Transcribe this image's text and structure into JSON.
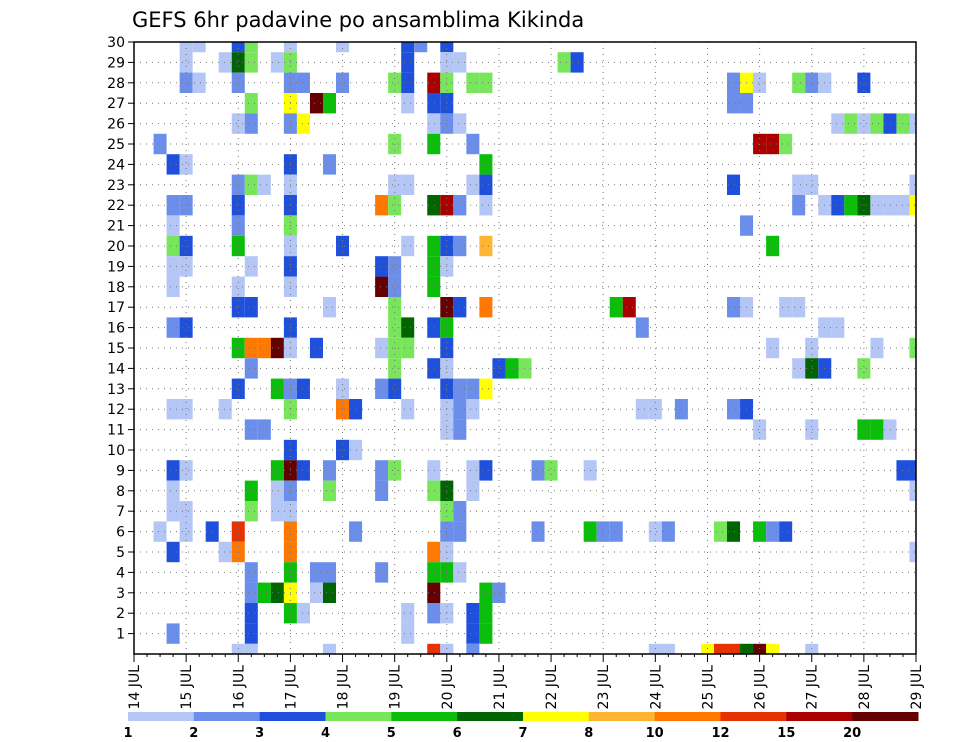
{
  "chart_data": {
    "type": "heatmap",
    "title": "GEFS 6hr padavine po ansamblima Kikinda",
    "xlabel": "",
    "ylabel": "",
    "x_ticks": [
      "14 JUL",
      "15 JUL",
      "16 JUL",
      "17 JUL",
      "18 JUL",
      "19 JUL",
      "20 JUL",
      "21 JUL",
      "22 JUL",
      "23 JUL",
      "24 JUL",
      "25 JUL",
      "26 JUL",
      "27 JUL",
      "28 JUL",
      "29 JUL"
    ],
    "x_unit": "6-hour step from 14 JUL 00",
    "x_range": [
      0,
      60
    ],
    "y_ticks": [
      1,
      2,
      3,
      4,
      5,
      6,
      7,
      8,
      9,
      10,
      11,
      12,
      13,
      14,
      15,
      16,
      17,
      18,
      19,
      20,
      21,
      22,
      23,
      24,
      25,
      26,
      27,
      28,
      29,
      30
    ],
    "y_range": [
      0,
      30
    ],
    "grid": true,
    "color_scale": {
      "boundaries": [
        1,
        2,
        3,
        4,
        5,
        6,
        7,
        8,
        10,
        12,
        15,
        20
      ],
      "labels": [
        "1",
        "2",
        "3",
        "4",
        "5",
        "6",
        "7",
        "8",
        "10",
        "12",
        "15",
        "20"
      ],
      "colors": [
        "#b4c6f5",
        "#6b8eea",
        "#1e50dc",
        "#78e65a",
        "#0abe0a",
        "#006400",
        "#ffff00",
        "#ffb432",
        "#ff7800",
        "#e63200",
        "#aa0000",
        "#640000"
      ]
    },
    "cells": [
      [
        4,
        30,
        1
      ],
      [
        5,
        30,
        1
      ],
      [
        8,
        30,
        3
      ],
      [
        9,
        30,
        4
      ],
      [
        12,
        30,
        1
      ],
      [
        16,
        30,
        1
      ],
      [
        21,
        30,
        3
      ],
      [
        22,
        30,
        2
      ],
      [
        24,
        30,
        3
      ],
      [
        4,
        29,
        1
      ],
      [
        7,
        29,
        1
      ],
      [
        8,
        29,
        6
      ],
      [
        9,
        29,
        4
      ],
      [
        11,
        29,
        1
      ],
      [
        12,
        29,
        4
      ],
      [
        21,
        29,
        3
      ],
      [
        24,
        29,
        1
      ],
      [
        25,
        29,
        1
      ],
      [
        33,
        29,
        4
      ],
      [
        34,
        29,
        3
      ],
      [
        4,
        28,
        2
      ],
      [
        5,
        28,
        1
      ],
      [
        8,
        28,
        2
      ],
      [
        12,
        28,
        2
      ],
      [
        13,
        28,
        2
      ],
      [
        16,
        28,
        2
      ],
      [
        20,
        28,
        4
      ],
      [
        21,
        28,
        3
      ],
      [
        23,
        28,
        11
      ],
      [
        24,
        28,
        4
      ],
      [
        26,
        28,
        4
      ],
      [
        27,
        28,
        4
      ],
      [
        46,
        28,
        2
      ],
      [
        47,
        28,
        7
      ],
      [
        48,
        28,
        1
      ],
      [
        51,
        28,
        4
      ],
      [
        52,
        28,
        2
      ],
      [
        53,
        28,
        1
      ],
      [
        56,
        28,
        3
      ],
      [
        9,
        27,
        4
      ],
      [
        12,
        27,
        7
      ],
      [
        14,
        27,
        12
      ],
      [
        15,
        27,
        5
      ],
      [
        21,
        27,
        1
      ],
      [
        23,
        27,
        3
      ],
      [
        24,
        27,
        3
      ],
      [
        46,
        27,
        2
      ],
      [
        47,
        27,
        2
      ],
      [
        8,
        26,
        1
      ],
      [
        9,
        26,
        2
      ],
      [
        12,
        26,
        2
      ],
      [
        13,
        26,
        7
      ],
      [
        23,
        26,
        1
      ],
      [
        24,
        26,
        2
      ],
      [
        25,
        26,
        1
      ],
      [
        54,
        26,
        1
      ],
      [
        55,
        26,
        4
      ],
      [
        56,
        26,
        1
      ],
      [
        57,
        26,
        4
      ],
      [
        58,
        26,
        3
      ],
      [
        59,
        26,
        4
      ],
      [
        60,
        26,
        1
      ],
      [
        2,
        25,
        2
      ],
      [
        20,
        25,
        4
      ],
      [
        23,
        25,
        5
      ],
      [
        26,
        25,
        2
      ],
      [
        48,
        25,
        11
      ],
      [
        49,
        25,
        11
      ],
      [
        50,
        25,
        4
      ],
      [
        3,
        24,
        3
      ],
      [
        4,
        24,
        1
      ],
      [
        12,
        24,
        3
      ],
      [
        15,
        24,
        2
      ],
      [
        27,
        24,
        5
      ],
      [
        8,
        23,
        2
      ],
      [
        9,
        23,
        4
      ],
      [
        10,
        23,
        1
      ],
      [
        12,
        23,
        1
      ],
      [
        20,
        23,
        1
      ],
      [
        21,
        23,
        1
      ],
      [
        26,
        23,
        1
      ],
      [
        27,
        23,
        3
      ],
      [
        46,
        23,
        3
      ],
      [
        51,
        23,
        1
      ],
      [
        52,
        23,
        1
      ],
      [
        60,
        23,
        1
      ],
      [
        3,
        22,
        2
      ],
      [
        4,
        22,
        2
      ],
      [
        8,
        22,
        3
      ],
      [
        12,
        22,
        3
      ],
      [
        19,
        22,
        9
      ],
      [
        20,
        22,
        4
      ],
      [
        23,
        22,
        6
      ],
      [
        24,
        22,
        11
      ],
      [
        25,
        22,
        2
      ],
      [
        27,
        22,
        1
      ],
      [
        51,
        22,
        2
      ],
      [
        53,
        22,
        1
      ],
      [
        54,
        22,
        3
      ],
      [
        55,
        22,
        5
      ],
      [
        56,
        22,
        6
      ],
      [
        57,
        22,
        1
      ],
      [
        58,
        22,
        1
      ],
      [
        59,
        22,
        1
      ],
      [
        60,
        22,
        7
      ],
      [
        3,
        21,
        1
      ],
      [
        8,
        21,
        2
      ],
      [
        12,
        21,
        4
      ],
      [
        47,
        21,
        2
      ],
      [
        3,
        20,
        4
      ],
      [
        4,
        20,
        3
      ],
      [
        8,
        20,
        5
      ],
      [
        12,
        20,
        1
      ],
      [
        16,
        20,
        3
      ],
      [
        21,
        20,
        1
      ],
      [
        23,
        20,
        5
      ],
      [
        24,
        20,
        3
      ],
      [
        25,
        20,
        2
      ],
      [
        27,
        20,
        8
      ],
      [
        49,
        20,
        5
      ],
      [
        3,
        19,
        1
      ],
      [
        4,
        19,
        1
      ],
      [
        9,
        19,
        1
      ],
      [
        12,
        19,
        3
      ],
      [
        19,
        19,
        3
      ],
      [
        20,
        19,
        2
      ],
      [
        23,
        19,
        5
      ],
      [
        24,
        19,
        1
      ],
      [
        3,
        18,
        1
      ],
      [
        8,
        18,
        1
      ],
      [
        12,
        18,
        1
      ],
      [
        19,
        18,
        12
      ],
      [
        20,
        18,
        2
      ],
      [
        23,
        18,
        5
      ],
      [
        8,
        17,
        3
      ],
      [
        9,
        17,
        3
      ],
      [
        15,
        17,
        1
      ],
      [
        20,
        17,
        4
      ],
      [
        24,
        17,
        12
      ],
      [
        25,
        17,
        3
      ],
      [
        27,
        17,
        9
      ],
      [
        37,
        17,
        5
      ],
      [
        38,
        17,
        11
      ],
      [
        46,
        17,
        2
      ],
      [
        47,
        17,
        1
      ],
      [
        50,
        17,
        1
      ],
      [
        51,
        17,
        1
      ],
      [
        3,
        16,
        2
      ],
      [
        4,
        16,
        3
      ],
      [
        12,
        16,
        3
      ],
      [
        20,
        16,
        4
      ],
      [
        21,
        16,
        6
      ],
      [
        23,
        16,
        3
      ],
      [
        24,
        16,
        5
      ],
      [
        39,
        16,
        2
      ],
      [
        53,
        16,
        1
      ],
      [
        54,
        16,
        1
      ],
      [
        8,
        15,
        5
      ],
      [
        9,
        15,
        9
      ],
      [
        10,
        15,
        9
      ],
      [
        11,
        15,
        12
      ],
      [
        12,
        15,
        1
      ],
      [
        14,
        15,
        3
      ],
      [
        19,
        15,
        1
      ],
      [
        20,
        15,
        4
      ],
      [
        21,
        15,
        4
      ],
      [
        24,
        15,
        3
      ],
      [
        49,
        15,
        1
      ],
      [
        52,
        15,
        1
      ],
      [
        57,
        15,
        1
      ],
      [
        60,
        15,
        4
      ],
      [
        9,
        14,
        2
      ],
      [
        20,
        14,
        4
      ],
      [
        23,
        14,
        3
      ],
      [
        24,
        14,
        1
      ],
      [
        28,
        14,
        3
      ],
      [
        29,
        14,
        5
      ],
      [
        30,
        14,
        4
      ],
      [
        51,
        14,
        1
      ],
      [
        52,
        14,
        6
      ],
      [
        53,
        14,
        3
      ],
      [
        56,
        14,
        4
      ],
      [
        8,
        13,
        3
      ],
      [
        11,
        13,
        5
      ],
      [
        12,
        13,
        2
      ],
      [
        13,
        13,
        3
      ],
      [
        16,
        13,
        1
      ],
      [
        19,
        13,
        2
      ],
      [
        20,
        13,
        3
      ],
      [
        24,
        13,
        3
      ],
      [
        25,
        13,
        2
      ],
      [
        26,
        13,
        2
      ],
      [
        27,
        13,
        7
      ],
      [
        3,
        12,
        1
      ],
      [
        4,
        12,
        1
      ],
      [
        7,
        12,
        1
      ],
      [
        12,
        12,
        4
      ],
      [
        16,
        12,
        9
      ],
      [
        17,
        12,
        3
      ],
      [
        21,
        12,
        1
      ],
      [
        24,
        12,
        1
      ],
      [
        25,
        12,
        2
      ],
      [
        26,
        12,
        1
      ],
      [
        39,
        12,
        1
      ],
      [
        40,
        12,
        1
      ],
      [
        42,
        12,
        2
      ],
      [
        46,
        12,
        2
      ],
      [
        47,
        12,
        3
      ],
      [
        9,
        11,
        2
      ],
      [
        10,
        11,
        2
      ],
      [
        24,
        11,
        1
      ],
      [
        25,
        11,
        2
      ],
      [
        48,
        11,
        1
      ],
      [
        52,
        11,
        1
      ],
      [
        56,
        11,
        5
      ],
      [
        57,
        11,
        5
      ],
      [
        58,
        11,
        1
      ],
      [
        12,
        10,
        3
      ],
      [
        16,
        10,
        3
      ],
      [
        17,
        10,
        1
      ],
      [
        3,
        9,
        3
      ],
      [
        4,
        9,
        1
      ],
      [
        11,
        9,
        5
      ],
      [
        12,
        9,
        12
      ],
      [
        13,
        9,
        3
      ],
      [
        15,
        9,
        2
      ],
      [
        19,
        9,
        2
      ],
      [
        20,
        9,
        4
      ],
      [
        23,
        9,
        1
      ],
      [
        26,
        9,
        1
      ],
      [
        27,
        9,
        3
      ],
      [
        31,
        9,
        2
      ],
      [
        32,
        9,
        4
      ],
      [
        35,
        9,
        1
      ],
      [
        59,
        9,
        3
      ],
      [
        60,
        9,
        3
      ],
      [
        3,
        8,
        1
      ],
      [
        9,
        8,
        5
      ],
      [
        11,
        8,
        1
      ],
      [
        12,
        8,
        2
      ],
      [
        15,
        8,
        4
      ],
      [
        19,
        8,
        2
      ],
      [
        23,
        8,
        4
      ],
      [
        24,
        8,
        6
      ],
      [
        26,
        8,
        1
      ],
      [
        60,
        8,
        1
      ],
      [
        3,
        7,
        1
      ],
      [
        4,
        7,
        1
      ],
      [
        9,
        7,
        4
      ],
      [
        11,
        7,
        1
      ],
      [
        12,
        7,
        1
      ],
      [
        24,
        7,
        4
      ],
      [
        25,
        7,
        2
      ],
      [
        2,
        6,
        1
      ],
      [
        4,
        6,
        1
      ],
      [
        6,
        6,
        3
      ],
      [
        8,
        6,
        10
      ],
      [
        12,
        6,
        9
      ],
      [
        17,
        6,
        2
      ],
      [
        24,
        6,
        2
      ],
      [
        25,
        6,
        2
      ],
      [
        31,
        6,
        2
      ],
      [
        35,
        6,
        5
      ],
      [
        36,
        6,
        2
      ],
      [
        37,
        6,
        2
      ],
      [
        40,
        6,
        1
      ],
      [
        41,
        6,
        2
      ],
      [
        45,
        6,
        4
      ],
      [
        46,
        6,
        6
      ],
      [
        48,
        6,
        5
      ],
      [
        49,
        6,
        2
      ],
      [
        50,
        6,
        3
      ],
      [
        3,
        5,
        3
      ],
      [
        7,
        5,
        1
      ],
      [
        8,
        5,
        9
      ],
      [
        12,
        5,
        9
      ],
      [
        23,
        5,
        9
      ],
      [
        24,
        5,
        1
      ],
      [
        60,
        5,
        1
      ],
      [
        9,
        4,
        2
      ],
      [
        12,
        4,
        5
      ],
      [
        14,
        4,
        2
      ],
      [
        15,
        4,
        2
      ],
      [
        19,
        4,
        2
      ],
      [
        23,
        4,
        5
      ],
      [
        24,
        4,
        5
      ],
      [
        25,
        4,
        1
      ],
      [
        9,
        3,
        2
      ],
      [
        10,
        3,
        5
      ],
      [
        11,
        3,
        6
      ],
      [
        12,
        3,
        7
      ],
      [
        14,
        3,
        1
      ],
      [
        15,
        3,
        6
      ],
      [
        23,
        3,
        12
      ],
      [
        27,
        3,
        5
      ],
      [
        28,
        3,
        2
      ],
      [
        9,
        2,
        3
      ],
      [
        12,
        2,
        5
      ],
      [
        13,
        2,
        1
      ],
      [
        21,
        2,
        1
      ],
      [
        23,
        2,
        2
      ],
      [
        24,
        2,
        1
      ],
      [
        26,
        2,
        3
      ],
      [
        27,
        2,
        5
      ],
      [
        3,
        1,
        2
      ],
      [
        9,
        1,
        3
      ],
      [
        21,
        1,
        1
      ],
      [
        26,
        1,
        3
      ],
      [
        27,
        1,
        5
      ],
      [
        8,
        0,
        1
      ],
      [
        9,
        0,
        1
      ],
      [
        15,
        0,
        1
      ],
      [
        23,
        0,
        10
      ],
      [
        24,
        0,
        1
      ],
      [
        26,
        0,
        2
      ],
      [
        40,
        0,
        1
      ],
      [
        41,
        0,
        1
      ],
      [
        44,
        0,
        7
      ],
      [
        45,
        0,
        10
      ],
      [
        46,
        0,
        10
      ],
      [
        47,
        0,
        6
      ],
      [
        48,
        0,
        12
      ],
      [
        49,
        0,
        7
      ],
      [
        52,
        0,
        1
      ]
    ]
  }
}
